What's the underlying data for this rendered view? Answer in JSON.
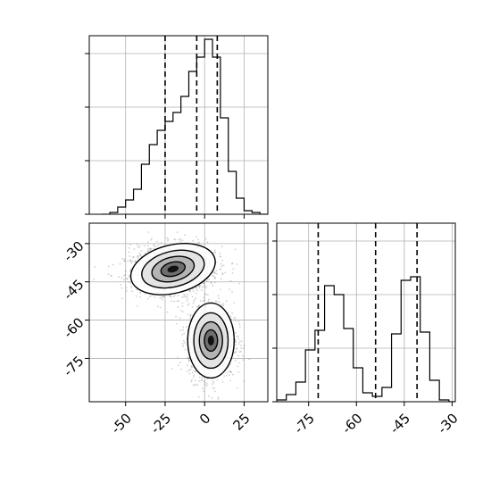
{
  "chart_data": {
    "type": "corner",
    "grid": true,
    "panels": [
      {
        "id": "hist_x",
        "type": "histogram-step",
        "xlim": [
          -73,
          40
        ],
        "ylim": [
          0,
          1
        ],
        "bin_edges": [
          -65,
          -60,
          -55,
          -50,
          -45,
          -40,
          -35,
          -30,
          -25,
          -20,
          -15,
          -10,
          -5,
          0,
          5,
          10,
          15,
          20,
          25,
          30,
          35,
          40
        ],
        "counts": [
          0.0,
          0.01,
          0.04,
          0.08,
          0.14,
          0.28,
          0.39,
          0.47,
          0.52,
          0.57,
          0.66,
          0.8,
          0.88,
          0.98,
          0.88,
          0.54,
          0.24,
          0.09,
          0.02,
          0.01,
          0.0
        ],
        "quantiles": [
          -25,
          -5,
          8
        ],
        "x_ticks": [
          -50,
          -25,
          0,
          25
        ],
        "y_ticks": [
          0.0,
          0.3,
          0.6,
          0.9
        ]
      },
      {
        "id": "density_xy",
        "type": "2d-density",
        "xlim": [
          -73,
          40
        ],
        "ylim": [
          -92,
          -22
        ],
        "x_ticks": [
          -50,
          -25,
          0,
          25
        ],
        "y_ticks": [
          -30,
          -45,
          -60,
          -75
        ],
        "x_tick_labels": [
          "-50",
          "-25",
          "0",
          "25"
        ],
        "y_tick_labels": [
          "-30",
          "-45",
          "-60",
          "-75"
        ],
        "clusters": [
          {
            "center": [
              -20,
              -40
            ],
            "spread": [
              13,
              4.5
            ],
            "angle": 14
          },
          {
            "center": [
              4,
              -68
            ],
            "spread": [
              7,
              7
            ],
            "angle": 0
          }
        ]
      },
      {
        "id": "hist_y",
        "type": "histogram-step",
        "xlim": [
          -85,
          -29
        ],
        "ylim": [
          0,
          1
        ],
        "bin_edges": [
          -85,
          -82,
          -79,
          -76,
          -73,
          -70,
          -67,
          -64,
          -61,
          -58,
          -55,
          -52,
          -49,
          -46,
          -43,
          -40,
          -37,
          -34,
          -31,
          -29
        ],
        "counts": [
          0.01,
          0.04,
          0.11,
          0.29,
          0.4,
          0.65,
          0.6,
          0.41,
          0.19,
          0.05,
          0.03,
          0.08,
          0.38,
          0.68,
          0.7,
          0.39,
          0.12,
          0.01,
          0.0
        ],
        "quantiles": [
          -72,
          -54,
          -41
        ],
        "x_ticks": [
          -75,
          -60,
          -45,
          -30
        ],
        "x_tick_labels": [
          "-75",
          "-60",
          "-45",
          "-30"
        ],
        "y_ticks": [
          0.0,
          0.3,
          0.6,
          0.9
        ]
      }
    ]
  }
}
